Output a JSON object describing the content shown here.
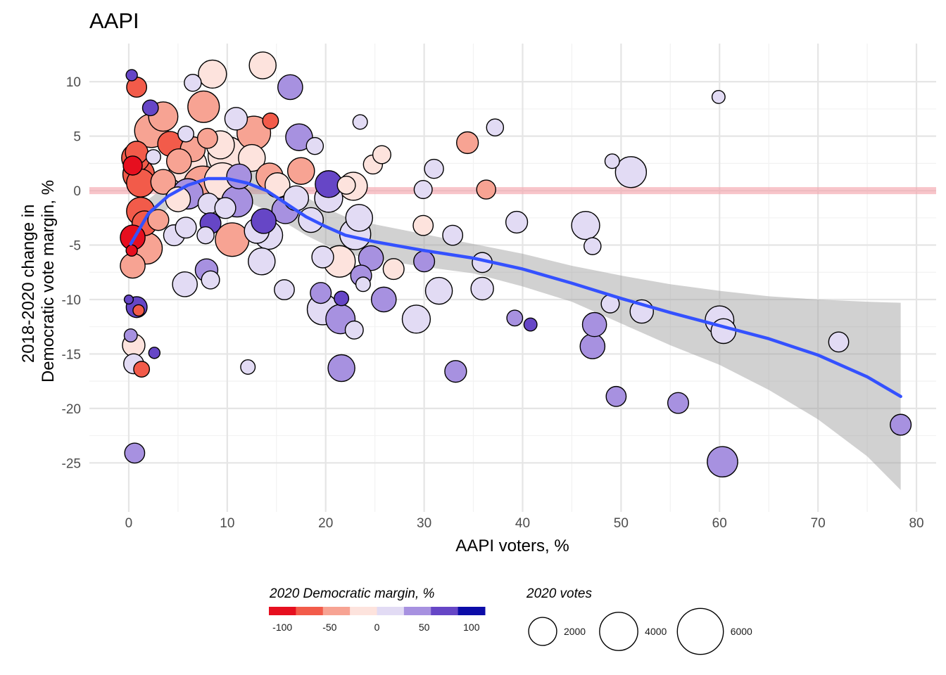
{
  "chart_data": {
    "type": "scatter",
    "title": "AAPI",
    "xlabel": "AAPI voters, %",
    "ylabel": [
      "2018-2020 change in",
      "Democratic vote margin, %"
    ],
    "xlim": [
      -4,
      82
    ],
    "ylim": [
      -29.5,
      13.5
    ],
    "xticks": [
      0,
      10,
      20,
      30,
      40,
      50,
      60,
      70,
      80
    ],
    "yticks": [
      10,
      5,
      0,
      -5,
      -10,
      -15,
      -20,
      -25
    ],
    "reference_line": {
      "y": 0,
      "color": "#f4a6ad"
    },
    "smooth": {
      "method": "loess",
      "line_color": "#3451ff",
      "ribbon_color": "#999999",
      "points": [
        [
          0.2,
          -4.9
        ],
        [
          2,
          -2.1
        ],
        [
          4,
          -0.5
        ],
        [
          6,
          0.5
        ],
        [
          8,
          1.1
        ],
        [
          10,
          1.1
        ],
        [
          12,
          0.7
        ],
        [
          14,
          0
        ],
        [
          16,
          -1.2
        ],
        [
          18,
          -2.4
        ],
        [
          20,
          -3.3
        ],
        [
          22,
          -4.1
        ],
        [
          25,
          -4.7
        ],
        [
          30,
          -5.5
        ],
        [
          35,
          -6.2
        ],
        [
          40,
          -7.2
        ],
        [
          45,
          -8.5
        ],
        [
          50,
          -9.9
        ],
        [
          55,
          -11.2
        ],
        [
          60,
          -12.4
        ],
        [
          65,
          -13.6
        ],
        [
          70,
          -15.1
        ],
        [
          75,
          -17.1
        ],
        [
          78.4,
          -18.9
        ]
      ],
      "band_upper": [
        [
          0.2,
          -2.6
        ],
        [
          2,
          -0.8
        ],
        [
          4,
          0.6
        ],
        [
          6,
          1.7
        ],
        [
          8,
          2.4
        ],
        [
          10,
          2.6
        ],
        [
          12,
          2.4
        ],
        [
          14,
          1.8
        ],
        [
          16,
          0.6
        ],
        [
          18,
          -0.6
        ],
        [
          20,
          -1.6
        ],
        [
          22,
          -2.4
        ],
        [
          25,
          -3.1
        ],
        [
          30,
          -4.0
        ],
        [
          35,
          -4.9
        ],
        [
          40,
          -5.8
        ],
        [
          45,
          -6.9
        ],
        [
          50,
          -7.8
        ],
        [
          55,
          -8.6
        ],
        [
          60,
          -9.2
        ],
        [
          65,
          -9.7
        ],
        [
          70,
          -10.0
        ],
        [
          75,
          -10.2
        ],
        [
          78.4,
          -10.3
        ]
      ],
      "band_lower": [
        [
          0.2,
          -7.1
        ],
        [
          2,
          -3.5
        ],
        [
          4,
          -1.6
        ],
        [
          6,
          -0.6
        ],
        [
          8,
          -0.2
        ],
        [
          10,
          -0.4
        ],
        [
          12,
          -1.0
        ],
        [
          14,
          -1.8
        ],
        [
          16,
          -3.0
        ],
        [
          18,
          -4.1
        ],
        [
          20,
          -5.0
        ],
        [
          22,
          -5.8
        ],
        [
          25,
          -6.3
        ],
        [
          30,
          -7.0
        ],
        [
          35,
          -7.6
        ],
        [
          40,
          -8.8
        ],
        [
          45,
          -10.2
        ],
        [
          50,
          -12.2
        ],
        [
          55,
          -14.2
        ],
        [
          60,
          -16.0
        ],
        [
          65,
          -18.3
        ],
        [
          70,
          -21.0
        ],
        [
          75,
          -24.4
        ],
        [
          78.4,
          -27.5
        ]
      ]
    },
    "color_scale": {
      "title": "2020 Democratic margin, %",
      "breaks": [
        -100,
        -50,
        0,
        50,
        100
      ],
      "bins": [
        "#e60f1f",
        "#f25b4a",
        "#f7a393",
        "#fde3dd",
        "#e2dbf4",
        "#a791e0",
        "#6646c6",
        "#0c0ca8"
      ]
    },
    "size_scale": {
      "title": "2020 votes",
      "breaks": [
        2000,
        4000,
        6000
      ]
    },
    "points": [
      {
        "x": 0.3,
        "y": 10.6,
        "m": 60,
        "v": 200
      },
      {
        "x": 0.8,
        "y": 9.5,
        "m": -70,
        "v": 900
      },
      {
        "x": 2.2,
        "y": 7.6,
        "m": 60,
        "v": 500
      },
      {
        "x": 2.3,
        "y": 5.5,
        "m": -45,
        "v": 3000
      },
      {
        "x": 3.5,
        "y": 6.8,
        "m": -40,
        "v": 2200
      },
      {
        "x": 0.8,
        "y": 3.5,
        "m": -55,
        "v": 1200
      },
      {
        "x": 0.7,
        "y": 3.0,
        "m": -65,
        "v": 2000
      },
      {
        "x": 2.5,
        "y": 3.1,
        "m": 0,
        "v": 400
      },
      {
        "x": 1.0,
        "y": 1.5,
        "m": -60,
        "v": 2600
      },
      {
        "x": 0.4,
        "y": 2.3,
        "m": -80,
        "v": 800
      },
      {
        "x": 1.2,
        "y": 0.7,
        "m": -65,
        "v": 2000
      },
      {
        "x": 3.5,
        "y": 0.8,
        "m": -40,
        "v": 1500
      },
      {
        "x": 1.2,
        "y": -1.9,
        "m": -60,
        "v": 2000
      },
      {
        "x": 1.6,
        "y": -3.0,
        "m": -55,
        "v": 1500
      },
      {
        "x": 3.0,
        "y": -2.7,
        "m": -40,
        "v": 1000
      },
      {
        "x": 0.4,
        "y": -4.3,
        "m": -80,
        "v": 1500
      },
      {
        "x": 1.8,
        "y": -5.3,
        "m": -45,
        "v": 2600
      },
      {
        "x": 0.3,
        "y": -5.5,
        "m": -80,
        "v": 200
      },
      {
        "x": 0.4,
        "y": -6.9,
        "m": -30,
        "v": 1500
      },
      {
        "x": 0.0,
        "y": -10.0,
        "m": 50,
        "v": 100
      },
      {
        "x": 0.8,
        "y": -10.7,
        "m": 60,
        "v": 1000
      },
      {
        "x": 1.0,
        "y": -11.0,
        "m": -60,
        "v": 200
      },
      {
        "x": 0.2,
        "y": -13.3,
        "m": 40,
        "v": 300
      },
      {
        "x": 0.5,
        "y": -14.2,
        "m": -15,
        "v": 1200
      },
      {
        "x": 2.6,
        "y": -14.9,
        "m": 70,
        "v": 200
      },
      {
        "x": 0.5,
        "y": -15.9,
        "m": 10,
        "v": 900
      },
      {
        "x": 1.3,
        "y": -16.4,
        "m": -70,
        "v": 500
      },
      {
        "x": 0.6,
        "y": -24.1,
        "m": 40,
        "v": 900
      },
      {
        "x": 4.2,
        "y": 4.3,
        "m": -65,
        "v": 1500
      },
      {
        "x": 5.8,
        "y": 5.2,
        "m": 0,
        "v": 500
      },
      {
        "x": 6.5,
        "y": 3.8,
        "m": -45,
        "v": 1500
      },
      {
        "x": 7.6,
        "y": 7.7,
        "m": -40,
        "v": 2600
      },
      {
        "x": 8.5,
        "y": 10.7,
        "m": -10,
        "v": 2000
      },
      {
        "x": 6.5,
        "y": 9.9,
        "m": 0,
        "v": 600
      },
      {
        "x": 8.0,
        "y": 4.8,
        "m": -40,
        "v": 900
      },
      {
        "x": 9.3,
        "y": 4.2,
        "m": -25,
        "v": 2000
      },
      {
        "x": 10.0,
        "y": 3.2,
        "m": -20,
        "v": 4000
      },
      {
        "x": 10.9,
        "y": 6.6,
        "m": 0,
        "v": 1200
      },
      {
        "x": 12.7,
        "y": 5.3,
        "m": -40,
        "v": 3000
      },
      {
        "x": 13.6,
        "y": 11.5,
        "m": -15,
        "v": 1800
      },
      {
        "x": 14.4,
        "y": 6.4,
        "m": -60,
        "v": 500
      },
      {
        "x": 16.4,
        "y": 9.5,
        "m": 25,
        "v": 1500
      },
      {
        "x": 12.5,
        "y": 3.0,
        "m": -20,
        "v": 1800
      },
      {
        "x": 14.3,
        "y": 1.3,
        "m": -35,
        "v": 1800
      },
      {
        "x": 17.3,
        "y": 4.9,
        "m": 30,
        "v": 1800
      },
      {
        "x": 17.5,
        "y": 1.8,
        "m": -35,
        "v": 1800
      },
      {
        "x": 18.9,
        "y": 4.1,
        "m": 0,
        "v": 600
      },
      {
        "x": 5.1,
        "y": 2.7,
        "m": -40,
        "v": 1500
      },
      {
        "x": 6.0,
        "y": 2.3,
        "m": -10,
        "v": 4000
      },
      {
        "x": 7.5,
        "y": 0.5,
        "m": -30,
        "v": 4000
      },
      {
        "x": 9.5,
        "y": 0.9,
        "m": -20,
        "v": 3500
      },
      {
        "x": 11.2,
        "y": 1.3,
        "m": 30,
        "v": 1500
      },
      {
        "x": 5.0,
        "y": -0.8,
        "m": -25,
        "v": 1500
      },
      {
        "x": 6.0,
        "y": -0.3,
        "m": 30,
        "v": 2400
      },
      {
        "x": 8.1,
        "y": -1.2,
        "m": 0,
        "v": 1000
      },
      {
        "x": 8.3,
        "y": -3.0,
        "m": 50,
        "v": 1000
      },
      {
        "x": 9.8,
        "y": -1.6,
        "m": 10,
        "v": 1000
      },
      {
        "x": 10.5,
        "y": -4.5,
        "m": -35,
        "v": 3000
      },
      {
        "x": 11.0,
        "y": -1.0,
        "m": 30,
        "v": 2500
      },
      {
        "x": 13.0,
        "y": -3.7,
        "m": 20,
        "v": 1500
      },
      {
        "x": 13.5,
        "y": -6.5,
        "m": 0,
        "v": 1800
      },
      {
        "x": 14.2,
        "y": -4.1,
        "m": 0,
        "v": 2000
      },
      {
        "x": 13.7,
        "y": -2.8,
        "m": 50,
        "v": 1500
      },
      {
        "x": 15.1,
        "y": 0.5,
        "m": -10,
        "v": 1500
      },
      {
        "x": 15.9,
        "y": -1.8,
        "m": 45,
        "v": 1800
      },
      {
        "x": 17.0,
        "y": -0.7,
        "m": 10,
        "v": 1500
      },
      {
        "x": 18.5,
        "y": -2.7,
        "m": 0,
        "v": 1500
      },
      {
        "x": 4.6,
        "y": -4.1,
        "m": 10,
        "v": 1000
      },
      {
        "x": 5.8,
        "y": -3.4,
        "m": 0,
        "v": 1000
      },
      {
        "x": 7.8,
        "y": -4.1,
        "m": 10,
        "v": 600
      },
      {
        "x": 5.7,
        "y": -8.6,
        "m": 10,
        "v": 1500
      },
      {
        "x": 7.9,
        "y": -7.3,
        "m": 30,
        "v": 1200
      },
      {
        "x": 8.3,
        "y": -8.2,
        "m": 10,
        "v": 700
      },
      {
        "x": 12.1,
        "y": -16.2,
        "m": 10,
        "v": 400
      },
      {
        "x": 15.8,
        "y": -9.1,
        "m": 10,
        "v": 900
      },
      {
        "x": 20.3,
        "y": 0.6,
        "m": 60,
        "v": 1800
      },
      {
        "x": 22.1,
        "y": 0.5,
        "m": -10,
        "v": 700
      },
      {
        "x": 22.8,
        "y": 0.4,
        "m": -10,
        "v": 2000
      },
      {
        "x": 20.3,
        "y": -0.7,
        "m": 10,
        "v": 2000
      },
      {
        "x": 23.5,
        "y": 6.3,
        "m": 0,
        "v": 400
      },
      {
        "x": 25.7,
        "y": 3.3,
        "m": -15,
        "v": 700
      },
      {
        "x": 24.8,
        "y": 2.4,
        "m": -10,
        "v": 800
      },
      {
        "x": 23.4,
        "y": -2.5,
        "m": 0,
        "v": 1800
      },
      {
        "x": 23.0,
        "y": -4.0,
        "m": 10,
        "v": 2500
      },
      {
        "x": 19.7,
        "y": -6.1,
        "m": 10,
        "v": 1100
      },
      {
        "x": 21.4,
        "y": -6.5,
        "m": -15,
        "v": 2600
      },
      {
        "x": 24.6,
        "y": -6.2,
        "m": 30,
        "v": 1500
      },
      {
        "x": 26.9,
        "y": -7.2,
        "m": -15,
        "v": 1000
      },
      {
        "x": 23.6,
        "y": -7.8,
        "m": 30,
        "v": 1000
      },
      {
        "x": 23.8,
        "y": -8.6,
        "m": 0,
        "v": 400
      },
      {
        "x": 19.5,
        "y": -9.4,
        "m": 30,
        "v": 1000
      },
      {
        "x": 21.6,
        "y": -9.9,
        "m": 50,
        "v": 400
      },
      {
        "x": 19.7,
        "y": -10.9,
        "m": 20,
        "v": 2500
      },
      {
        "x": 21.5,
        "y": -11.8,
        "m": 40,
        "v": 2200
      },
      {
        "x": 22.9,
        "y": -12.8,
        "m": 10,
        "v": 700
      },
      {
        "x": 25.9,
        "y": -10.0,
        "m": 40,
        "v": 1500
      },
      {
        "x": 21.6,
        "y": -16.3,
        "m": 25,
        "v": 1800
      },
      {
        "x": 29.9,
        "y": -3.2,
        "m": -10,
        "v": 900
      },
      {
        "x": 29.9,
        "y": 0.1,
        "m": 0,
        "v": 700
      },
      {
        "x": 31.0,
        "y": 2.0,
        "m": 0,
        "v": 800
      },
      {
        "x": 30.0,
        "y": -6.5,
        "m": 30,
        "v": 1000
      },
      {
        "x": 31.5,
        "y": -9.2,
        "m": 0,
        "v": 1800
      },
      {
        "x": 29.2,
        "y": -11.8,
        "m": 20,
        "v": 2000
      },
      {
        "x": 32.9,
        "y": -4.1,
        "m": 0,
        "v": 900
      },
      {
        "x": 33.2,
        "y": -16.6,
        "m": 45,
        "v": 1100
      },
      {
        "x": 34.4,
        "y": 4.4,
        "m": -30,
        "v": 1100
      },
      {
        "x": 36.3,
        "y": 0.1,
        "m": -30,
        "v": 800
      },
      {
        "x": 37.2,
        "y": 5.8,
        "m": 0,
        "v": 600
      },
      {
        "x": 35.9,
        "y": -6.6,
        "m": 10,
        "v": 900
      },
      {
        "x": 35.9,
        "y": -9.0,
        "m": 20,
        "v": 1200
      },
      {
        "x": 39.4,
        "y": -2.9,
        "m": 20,
        "v": 1100
      },
      {
        "x": 39.2,
        "y": -11.7,
        "m": 30,
        "v": 500
      },
      {
        "x": 40.8,
        "y": -12.3,
        "m": 50,
        "v": 300
      },
      {
        "x": 46.4,
        "y": -3.2,
        "m": 20,
        "v": 2000
      },
      {
        "x": 47.1,
        "y": -5.1,
        "m": 10,
        "v": 600
      },
      {
        "x": 47.3,
        "y": -12.3,
        "m": 25,
        "v": 1400
      },
      {
        "x": 47.1,
        "y": -14.3,
        "m": 25,
        "v": 1500
      },
      {
        "x": 49.1,
        "y": 2.7,
        "m": 0,
        "v": 400
      },
      {
        "x": 51.0,
        "y": 1.7,
        "m": 10,
        "v": 2500
      },
      {
        "x": 48.9,
        "y": -10.4,
        "m": 10,
        "v": 700
      },
      {
        "x": 52.1,
        "y": -11.1,
        "m": 10,
        "v": 1300
      },
      {
        "x": 49.5,
        "y": -18.9,
        "m": 40,
        "v": 900
      },
      {
        "x": 55.8,
        "y": -19.5,
        "m": 25,
        "v": 1000
      },
      {
        "x": 59.9,
        "y": 8.6,
        "m": 0,
        "v": 300
      },
      {
        "x": 60.0,
        "y": -11.9,
        "m": 10,
        "v": 2100
      },
      {
        "x": 60.4,
        "y": -12.9,
        "m": 10,
        "v": 1500
      },
      {
        "x": 60.3,
        "y": -24.9,
        "m": 25,
        "v": 2400
      },
      {
        "x": 72.1,
        "y": -13.9,
        "m": 10,
        "v": 900
      },
      {
        "x": 78.4,
        "y": -21.5,
        "m": 30,
        "v": 1000
      }
    ]
  }
}
